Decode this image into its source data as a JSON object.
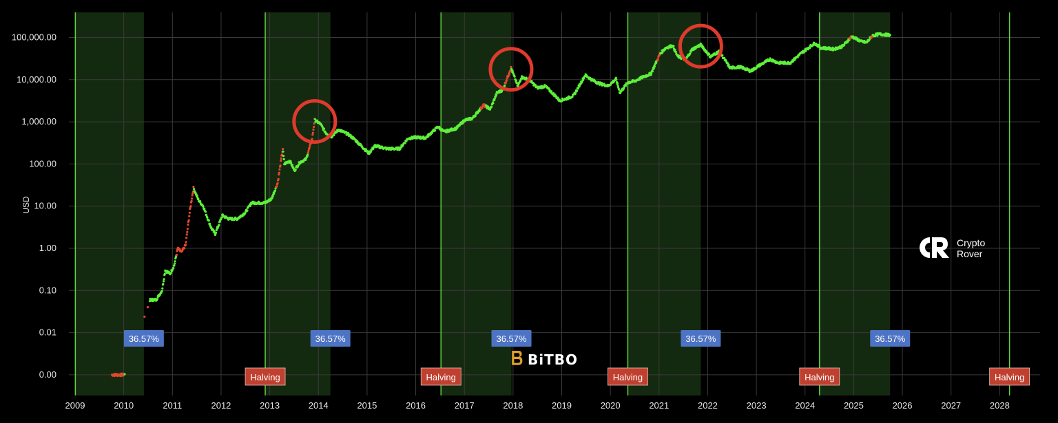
{
  "chart_data": {
    "type": "scatter",
    "title": "",
    "xlabel": "",
    "ylabel": "USD",
    "y_scale": "log",
    "ylim": [
      0.001,
      150000
    ],
    "xlim": [
      "2009-01-01",
      "2028-06-01"
    ],
    "grid": true,
    "x_ticks": [
      "2009",
      "2010",
      "2011",
      "2012",
      "2013",
      "2014",
      "2015",
      "2016",
      "2017",
      "2018",
      "2019",
      "2020",
      "2021",
      "2022",
      "2023",
      "2024",
      "2025",
      "2026",
      "2027",
      "2028"
    ],
    "y_ticks": [
      {
        "value": 0.001,
        "label": "0.00"
      },
      {
        "value": 0.01,
        "label": "0.01"
      },
      {
        "value": 0.1,
        "label": "0.10"
      },
      {
        "value": 1,
        "label": "1.00"
      },
      {
        "value": 10,
        "label": "10.00"
      },
      {
        "value": 100,
        "label": "100.00"
      },
      {
        "value": 1000,
        "label": "1,000.00"
      },
      {
        "value": 10000,
        "label": "10,000.00"
      },
      {
        "value": 100000,
        "label": "100,000.00"
      }
    ],
    "halvings": [
      {
        "date": "2012-11-28",
        "label": "Halving"
      },
      {
        "date": "2016-07-09",
        "label": "Halving"
      },
      {
        "date": "2020-05-11",
        "label": "Halving"
      },
      {
        "date": "2024-04-19",
        "label": "Halving"
      },
      {
        "date": "2028-03-15",
        "label": "Halving"
      }
    ],
    "cycle_bands": [
      {
        "start": "2009-01-03",
        "end": "2010-06-01",
        "label": "36.57%"
      },
      {
        "start": "2012-11-28",
        "end": "2014-04-01",
        "label": "36.57%"
      },
      {
        "start": "2016-07-09",
        "end": "2017-12-20",
        "label": "36.57%"
      },
      {
        "start": "2020-05-11",
        "end": "2021-11-10",
        "label": "36.57%"
      },
      {
        "start": "2024-04-19",
        "end": "2025-10-01",
        "label": "36.57%"
      }
    ],
    "peaks_circled": [
      {
        "date": "2013-12-04",
        "value": 1100
      },
      {
        "date": "2017-12-17",
        "value": 19000
      },
      {
        "date": "2021-11-10",
        "value": 67000
      }
    ],
    "series": [
      {
        "color": "#5ef03a",
        "points": [
          [
            "2009-10-05",
            0.001
          ],
          [
            "2010-01-05",
            0.001
          ],
          [
            "2010-07-18",
            0.06
          ],
          [
            "2010-09-01",
            0.06
          ],
          [
            "2010-10-15",
            0.1
          ],
          [
            "2010-11-08",
            0.3
          ],
          [
            "2010-12-15",
            0.25
          ],
          [
            "2011-01-15",
            0.4
          ],
          [
            "2011-02-10",
            1.0
          ],
          [
            "2011-03-10",
            0.8
          ],
          [
            "2011-04-10",
            1.2
          ],
          [
            "2011-05-10",
            7
          ],
          [
            "2011-06-08",
            27
          ],
          [
            "2011-07-15",
            14
          ],
          [
            "2011-08-20",
            10
          ],
          [
            "2011-10-20",
            3
          ],
          [
            "2011-11-18",
            2.2
          ],
          [
            "2012-01-10",
            6
          ],
          [
            "2012-03-01",
            5
          ],
          [
            "2012-05-01",
            5
          ],
          [
            "2012-07-01",
            7
          ],
          [
            "2012-08-16",
            12
          ],
          [
            "2012-10-01",
            12
          ],
          [
            "2012-11-28",
            12
          ],
          [
            "2013-01-15",
            15
          ],
          [
            "2013-03-01",
            35
          ],
          [
            "2013-04-09",
            230
          ],
          [
            "2013-04-20",
            100
          ],
          [
            "2013-06-01",
            120
          ],
          [
            "2013-07-05",
            70
          ],
          [
            "2013-08-15",
            110
          ],
          [
            "2013-10-01",
            130
          ],
          [
            "2013-11-15",
            400
          ],
          [
            "2013-12-04",
            1100
          ],
          [
            "2014-01-15",
            900
          ],
          [
            "2014-02-25",
            550
          ],
          [
            "2014-04-10",
            450
          ],
          [
            "2014-06-01",
            650
          ],
          [
            "2014-08-15",
            500
          ],
          [
            "2014-10-01",
            380
          ],
          [
            "2015-01-14",
            180
          ],
          [
            "2015-03-01",
            270
          ],
          [
            "2015-06-01",
            230
          ],
          [
            "2015-09-01",
            230
          ],
          [
            "2015-11-04",
            400
          ],
          [
            "2016-01-01",
            430
          ],
          [
            "2016-03-15",
            415
          ],
          [
            "2016-06-16",
            760
          ],
          [
            "2016-08-01",
            580
          ],
          [
            "2016-11-01",
            700
          ],
          [
            "2017-01-04",
            1100
          ],
          [
            "2017-03-01",
            1200
          ],
          [
            "2017-05-25",
            2500
          ],
          [
            "2017-07-15",
            2000
          ],
          [
            "2017-09-01",
            4800
          ],
          [
            "2017-10-15",
            5700
          ],
          [
            "2017-12-17",
            19000
          ],
          [
            "2018-02-06",
            6900
          ],
          [
            "2018-03-05",
            11500
          ],
          [
            "2018-05-05",
            9800
          ],
          [
            "2018-07-01",
            6400
          ],
          [
            "2018-09-01",
            7000
          ],
          [
            "2018-11-25",
            3800
          ],
          [
            "2018-12-15",
            3200
          ],
          [
            "2019-02-01",
            3500
          ],
          [
            "2019-04-01",
            4200
          ],
          [
            "2019-06-26",
            12800
          ],
          [
            "2019-08-15",
            10000
          ],
          [
            "2019-10-01",
            8300
          ],
          [
            "2019-12-15",
            7100
          ],
          [
            "2020-02-12",
            10300
          ],
          [
            "2020-03-13",
            4900
          ],
          [
            "2020-05-11",
            8600
          ],
          [
            "2020-07-01",
            9200
          ],
          [
            "2020-09-01",
            11500
          ],
          [
            "2020-11-01",
            13800
          ],
          [
            "2021-01-08",
            41000
          ],
          [
            "2021-02-21",
            57000
          ],
          [
            "2021-04-14",
            64000
          ],
          [
            "2021-05-19",
            36000
          ],
          [
            "2021-07-20",
            30000
          ],
          [
            "2021-09-06",
            52000
          ],
          [
            "2021-11-10",
            67000
          ],
          [
            "2022-01-22",
            35000
          ],
          [
            "2022-03-28",
            47000
          ],
          [
            "2022-06-18",
            19000
          ],
          [
            "2022-09-01",
            20000
          ],
          [
            "2022-11-21",
            16000
          ],
          [
            "2023-01-15",
            21000
          ],
          [
            "2023-04-14",
            30500
          ],
          [
            "2023-06-15",
            25000
          ],
          [
            "2023-09-11",
            25000
          ],
          [
            "2023-12-10",
            44000
          ],
          [
            "2024-03-13",
            73000
          ],
          [
            "2024-05-01",
            57000
          ],
          [
            "2024-08-05",
            53000
          ],
          [
            "2024-10-10",
            62000
          ],
          [
            "2024-12-17",
            106000
          ],
          [
            "2025-02-28",
            80000
          ],
          [
            "2025-04-08",
            76000
          ],
          [
            "2025-05-22",
            111000
          ],
          [
            "2025-07-14",
            120000
          ],
          [
            "2025-09-15",
            115000
          ],
          [
            "2025-10-01",
            114000
          ]
        ]
      }
    ],
    "red_segments": [
      [
        "2009-10-05",
        "2010-01-05"
      ],
      [
        "2010-05-01",
        "2010-07-01"
      ],
      [
        "2011-02-01",
        "2011-06-08"
      ],
      [
        "2013-02-15",
        "2013-04-09"
      ],
      [
        "2013-10-15",
        "2013-12-04"
      ],
      [
        "2017-05-01",
        "2017-06-10"
      ],
      [
        "2017-11-01",
        "2017-12-17"
      ],
      [
        "2020-12-15",
        "2021-01-08"
      ],
      [
        "2024-12-01",
        "2024-12-17"
      ],
      [
        "2025-05-10",
        "2025-05-22"
      ]
    ],
    "red_color": "#e2482f"
  },
  "colors": {
    "background": "#000000",
    "grid": "#3a3a3a",
    "band": "#142a10",
    "halving_line": "#5fd33d",
    "cycle_badge": "#4d73c4",
    "halving_badge": "#c0402f",
    "peak_circle": "#e03a2d"
  },
  "branding": {
    "bitbo": "BiTBO",
    "rover_line1": "Crypto",
    "rover_line2": "Rover"
  }
}
